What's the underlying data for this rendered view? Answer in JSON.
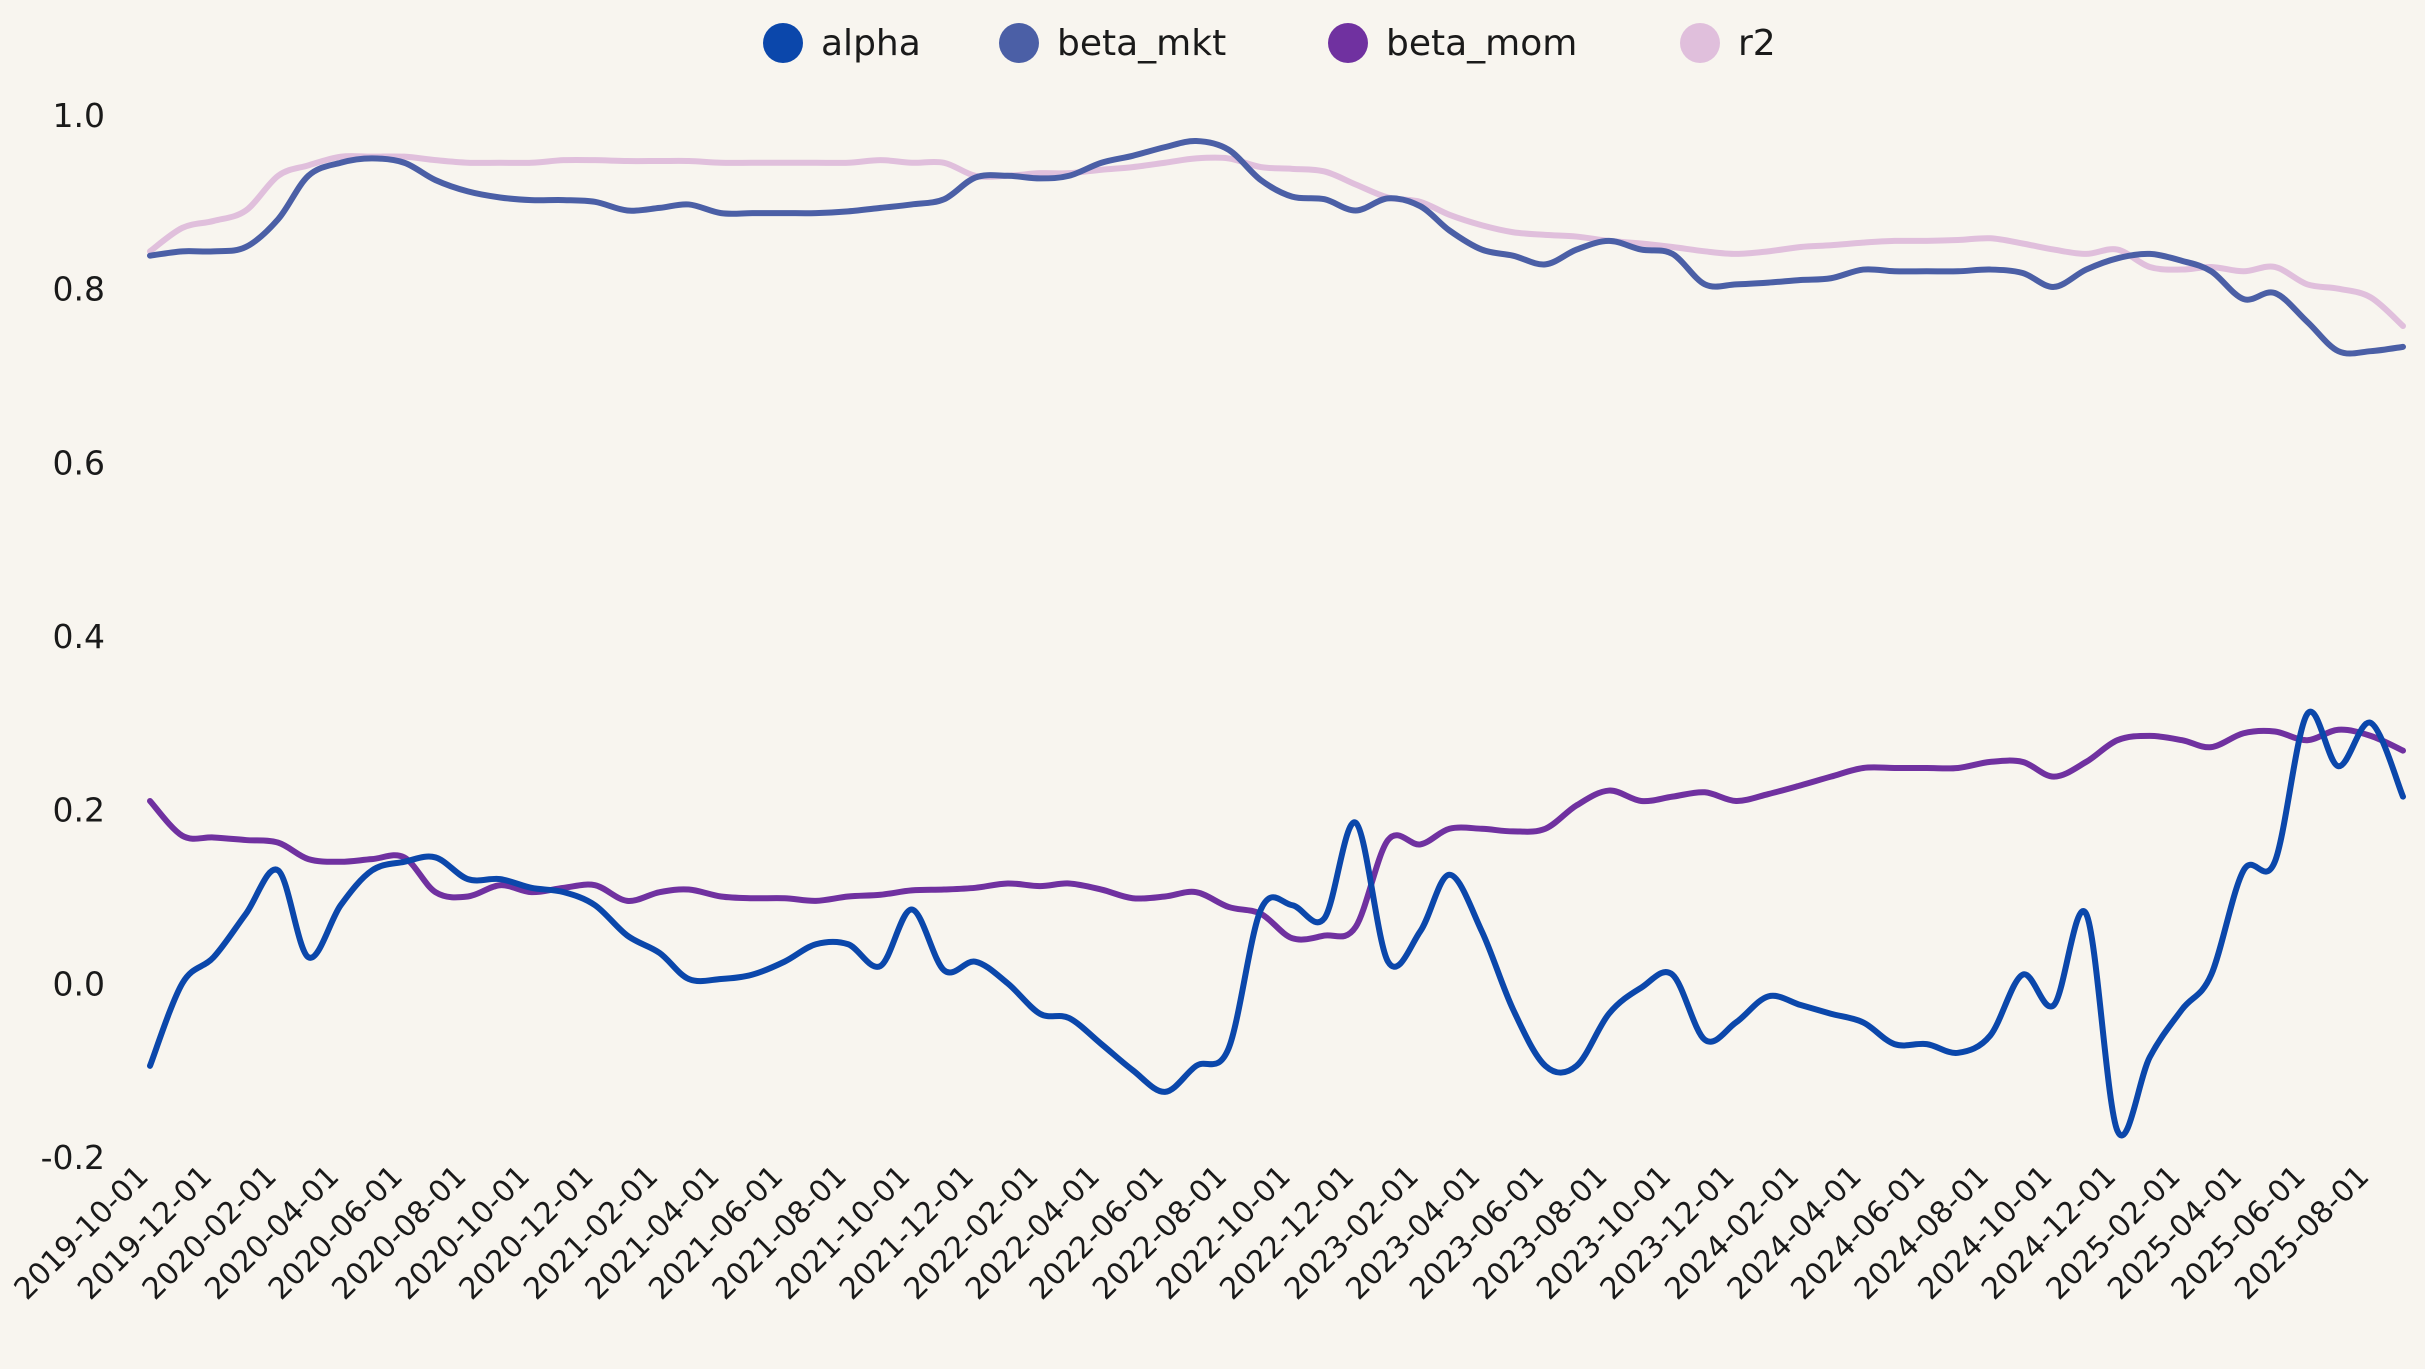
{
  "colors": {
    "background": "#f8f5ef",
    "alpha": "#0b47ab",
    "beta_mkt": "#4b5fa6",
    "beta_mom": "#7031a0",
    "r2": "#e0bfdc"
  },
  "chart_data": {
    "type": "line",
    "title": "",
    "xlabel": "",
    "ylabel": "",
    "ylim": [
      -0.2,
      1.0
    ],
    "yticks": [
      -0.2,
      0.0,
      0.2,
      0.4,
      0.6,
      0.8,
      1.0
    ],
    "ytick_labels": [
      "-0.2",
      "0.0",
      "0.2",
      "0.4",
      "0.6",
      "0.8",
      "1.0"
    ],
    "legend_position": "top-center",
    "grid": false,
    "xticks": [
      "2019-10-01",
      "2019-12-01",
      "2020-02-01",
      "2020-04-01",
      "2020-06-01",
      "2020-08-01",
      "2020-10-01",
      "2020-12-01",
      "2021-02-01",
      "2021-04-01",
      "2021-06-01",
      "2021-08-01",
      "2021-10-01",
      "2021-12-01",
      "2022-02-01",
      "2022-04-01",
      "2022-06-01",
      "2022-08-01",
      "2022-10-01",
      "2022-12-01",
      "2023-02-01",
      "2023-04-01",
      "2023-06-01",
      "2023-08-01",
      "2023-10-01",
      "2023-12-01",
      "2024-02-01",
      "2024-04-01",
      "2024-06-01",
      "2024-08-01",
      "2024-10-01",
      "2024-12-01",
      "2025-02-01",
      "2025-04-01",
      "2025-06-01",
      "2025-08-01"
    ],
    "x": [
      "2019-10-01",
      "2019-11-01",
      "2019-12-01",
      "2020-01-01",
      "2020-02-01",
      "2020-03-01",
      "2020-04-01",
      "2020-05-01",
      "2020-06-01",
      "2020-07-01",
      "2020-08-01",
      "2020-09-01",
      "2020-10-01",
      "2020-11-01",
      "2020-12-01",
      "2021-01-01",
      "2021-02-01",
      "2021-03-01",
      "2021-04-01",
      "2021-05-01",
      "2021-06-01",
      "2021-07-01",
      "2021-08-01",
      "2021-09-01",
      "2021-10-01",
      "2021-11-01",
      "2021-12-01",
      "2022-01-01",
      "2022-02-01",
      "2022-03-01",
      "2022-04-01",
      "2022-05-01",
      "2022-06-01",
      "2022-07-01",
      "2022-08-01",
      "2022-09-01",
      "2022-10-01",
      "2022-11-01",
      "2022-12-01",
      "2023-01-01",
      "2023-02-01",
      "2023-03-01",
      "2023-04-01",
      "2023-05-01",
      "2023-06-01",
      "2023-07-01",
      "2023-08-01",
      "2023-09-01",
      "2023-10-01",
      "2023-11-01",
      "2023-12-01",
      "2024-01-01",
      "2024-02-01",
      "2024-03-01",
      "2024-04-01",
      "2024-05-01",
      "2024-06-01",
      "2024-07-01",
      "2024-08-01",
      "2024-09-01",
      "2024-10-01",
      "2024-11-01",
      "2024-12-01",
      "2025-01-01",
      "2025-02-01",
      "2025-03-01",
      "2025-04-01",
      "2025-05-01",
      "2025-06-01",
      "2025-07-01",
      "2025-08-01",
      "2025-09-01"
    ],
    "series": [
      {
        "name": "alpha",
        "values": [
          -0.095,
          0.0,
          0.03,
          0.08,
          0.13,
          0.03,
          0.09,
          0.13,
          0.14,
          0.145,
          0.12,
          0.12,
          0.11,
          0.105,
          0.09,
          0.055,
          0.035,
          0.005,
          0.005,
          0.01,
          0.025,
          0.045,
          0.045,
          0.02,
          0.085,
          0.015,
          0.025,
          0.0,
          -0.035,
          -0.04,
          -0.07,
          -0.1,
          -0.125,
          -0.095,
          -0.075,
          0.085,
          0.09,
          0.075,
          0.185,
          0.025,
          0.06,
          0.125,
          0.06,
          -0.03,
          -0.095,
          -0.095,
          -0.035,
          -0.005,
          0.01,
          -0.065,
          -0.045,
          -0.015,
          -0.025,
          -0.035,
          -0.045,
          -0.07,
          -0.07,
          -0.08,
          -0.06,
          0.01,
          -0.025,
          0.08,
          -0.17,
          -0.085,
          -0.03,
          0.01,
          0.13,
          0.14,
          0.31,
          0.25,
          0.3,
          0.215
        ]
      },
      {
        "name": "beta_mkt",
        "values": [
          0.838,
          0.843,
          0.843,
          0.848,
          0.88,
          0.93,
          0.945,
          0.95,
          0.945,
          0.925,
          0.912,
          0.905,
          0.902,
          0.902,
          0.9,
          0.89,
          0.893,
          0.897,
          0.887,
          0.887,
          0.887,
          0.887,
          0.889,
          0.893,
          0.897,
          0.903,
          0.928,
          0.93,
          0.927,
          0.93,
          0.945,
          0.953,
          0.963,
          0.97,
          0.96,
          0.925,
          0.906,
          0.903,
          0.89,
          0.904,
          0.895,
          0.867,
          0.845,
          0.838,
          0.828,
          0.845,
          0.855,
          0.845,
          0.84,
          0.805,
          0.805,
          0.807,
          0.81,
          0.812,
          0.822,
          0.82,
          0.82,
          0.82,
          0.822,
          0.818,
          0.802,
          0.822,
          0.835,
          0.84,
          0.832,
          0.82,
          0.788,
          0.795,
          0.762,
          0.728,
          0.728,
          0.733
        ]
      },
      {
        "name": "beta_mom",
        "values": [
          0.21,
          0.17,
          0.168,
          0.165,
          0.162,
          0.143,
          0.14,
          0.143,
          0.145,
          0.105,
          0.1,
          0.113,
          0.105,
          0.11,
          0.113,
          0.095,
          0.105,
          0.108,
          0.1,
          0.098,
          0.098,
          0.095,
          0.1,
          0.102,
          0.107,
          0.108,
          0.11,
          0.115,
          0.112,
          0.115,
          0.108,
          0.098,
          0.1,
          0.105,
          0.088,
          0.08,
          0.052,
          0.055,
          0.065,
          0.165,
          0.16,
          0.178,
          0.178,
          0.175,
          0.178,
          0.205,
          0.222,
          0.21,
          0.215,
          0.22,
          0.21,
          0.218,
          0.228,
          0.238,
          0.248,
          0.248,
          0.248,
          0.248,
          0.255,
          0.255,
          0.238,
          0.255,
          0.28,
          0.285,
          0.28,
          0.272,
          0.288,
          0.29,
          0.28,
          0.292,
          0.285,
          0.268
        ]
      },
      {
        "name": "r2",
        "values": [
          0.843,
          0.87,
          0.878,
          0.89,
          0.93,
          0.942,
          0.952,
          0.952,
          0.952,
          0.948,
          0.945,
          0.945,
          0.945,
          0.948,
          0.948,
          0.947,
          0.947,
          0.947,
          0.945,
          0.945,
          0.945,
          0.945,
          0.945,
          0.948,
          0.945,
          0.945,
          0.93,
          0.93,
          0.933,
          0.933,
          0.937,
          0.94,
          0.945,
          0.95,
          0.95,
          0.94,
          0.938,
          0.935,
          0.92,
          0.905,
          0.9,
          0.885,
          0.873,
          0.865,
          0.862,
          0.86,
          0.855,
          0.852,
          0.848,
          0.843,
          0.84,
          0.843,
          0.848,
          0.85,
          0.853,
          0.855,
          0.855,
          0.856,
          0.858,
          0.852,
          0.845,
          0.84,
          0.845,
          0.825,
          0.822,
          0.825,
          0.82,
          0.825,
          0.805,
          0.8,
          0.79,
          0.757
        ]
      }
    ]
  }
}
